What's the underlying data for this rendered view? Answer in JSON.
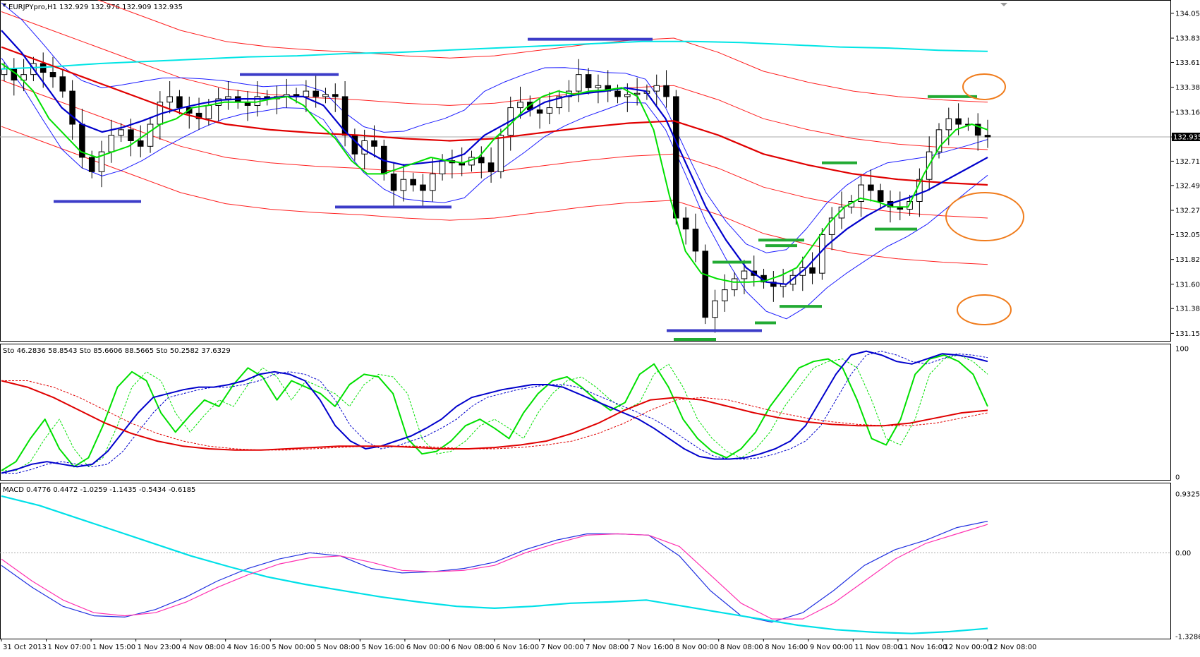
{
  "header": {
    "main_label": "EURJPYpro,H1  132.929 132.976 132.909 132.935",
    "sto_label": "Sto 46.2836 58.8543  Sto 85.6606 88.5665  Sto 50.2582 37.6329",
    "macd_label": "MACD 0.4776 0.4472 -1.0259 -1.1435 -0.5434 -0.6185",
    "current_price": "132.935"
  },
  "colors": {
    "background": "#ffffff",
    "bull_candle": "#ffffff",
    "bear_candle": "#000000",
    "ma_fast": "#00e000",
    "ma_mid": "#0000cc",
    "ma_slow": "#e00000",
    "ma_long": "#00e5e5",
    "bands": "#1c1cff",
    "bands_outer": "#ff2020",
    "support_marker": "#3c3cc8",
    "green_marker": "#22aa33",
    "highlight_circle": "#f07c1c",
    "macd_main": "#2030e0",
    "macd_signal": "#ff30b0",
    "macd_cyan": "#00e0e8"
  },
  "chart_data": [
    {
      "type": "candlestick",
      "symbol": "EURJPYpro",
      "timeframe": "H1",
      "ylim": [
        131.1,
        134.15
      ],
      "y_ticks": [
        "134.055",
        "133.830",
        "133.610",
        "133.385",
        "133.160",
        "132.935",
        "132.715",
        "132.495",
        "132.270",
        "132.050",
        "131.825",
        "131.600",
        "131.380",
        "131.155"
      ],
      "y_tick_values": [
        134.055,
        133.83,
        133.61,
        133.385,
        133.16,
        132.935,
        132.715,
        132.495,
        132.27,
        132.05,
        131.825,
        131.6,
        131.38,
        131.155
      ],
      "x_ticks": [
        "31 Oct 2013",
        "1 Nov 07:00",
        "1 Nov 15:00",
        "1 Nov 23:00",
        "4 Nov 08:00",
        "4 Nov 16:00",
        "5 Nov 00:00",
        "5 Nov 08:00",
        "5 Nov 16:00",
        "6 Nov 00:00",
        "6 Nov 08:00",
        "6 Nov 16:00",
        "7 Nov 00:00",
        "7 Nov 08:00",
        "7 Nov 16:00",
        "8 Nov 00:00",
        "8 Nov 08:00",
        "8 Nov 16:00",
        "9 Nov 00:00",
        "11 Nov 08:00",
        "11 Nov 16:00",
        "12 Nov 00:00",
        "12 Nov 08:00"
      ],
      "close": [
        133.55,
        133.45,
        133.5,
        133.6,
        133.52,
        133.48,
        133.35,
        133.05,
        132.75,
        132.62,
        132.8,
        132.95,
        133.0,
        132.9,
        132.85,
        133.05,
        133.25,
        133.3,
        133.2,
        133.15,
        133.1,
        133.22,
        133.28,
        133.3,
        133.25,
        133.22,
        133.3,
        133.28,
        133.3,
        133.32,
        133.3,
        133.35,
        133.3,
        133.32,
        133.3,
        132.95,
        132.78,
        132.9,
        132.85,
        132.6,
        132.45,
        132.55,
        132.5,
        132.45,
        132.6,
        132.72,
        132.7,
        132.68,
        132.75,
        132.7,
        132.62,
        132.95,
        133.2,
        133.25,
        133.18,
        133.15,
        133.2,
        133.3,
        133.35,
        133.5,
        133.38,
        133.4,
        133.35,
        133.3,
        133.32,
        133.33,
        133.35,
        133.4,
        133.3,
        132.2,
        132.1,
        131.9,
        131.3,
        131.45,
        131.55,
        131.65,
        131.72,
        131.68,
        131.62,
        131.58,
        131.6,
        131.68,
        131.75,
        131.7,
        132.05,
        132.2,
        132.3,
        132.35,
        132.5,
        132.45,
        132.35,
        132.3,
        132.28,
        132.35,
        132.55,
        132.8,
        133.0,
        133.1,
        133.05,
        133.05,
        132.95,
        132.935
      ],
      "ma_fast": [
        133.6,
        133.5,
        133.35,
        133.1,
        132.95,
        132.8,
        132.75,
        132.8,
        132.85,
        132.95,
        133.05,
        133.1,
        133.2,
        133.22,
        133.25,
        133.25,
        133.25,
        133.28,
        133.3,
        133.22,
        133.05,
        132.92,
        132.72,
        132.6,
        132.6,
        132.65,
        132.7,
        132.75,
        132.72,
        132.7,
        132.75,
        132.92,
        133.05,
        133.2,
        133.3,
        133.35,
        133.32,
        133.35,
        133.36,
        133.38,
        133.3,
        133.0,
        132.4,
        131.9,
        131.7,
        131.65,
        131.62,
        131.62,
        131.63,
        131.68,
        131.75,
        131.95,
        132.15,
        132.3,
        132.38,
        132.35,
        132.3,
        132.3,
        132.6,
        132.85,
        133.0,
        133.05,
        133.0
      ],
      "ma_mid": [
        133.9,
        133.7,
        133.45,
        133.2,
        133.05,
        132.98,
        133.02,
        133.08,
        133.15,
        133.2,
        133.24,
        133.27,
        133.28,
        133.28,
        133.3,
        133.3,
        133.22,
        133.0,
        132.82,
        132.72,
        132.68,
        132.7,
        132.72,
        132.78,
        132.95,
        133.05,
        133.15,
        133.25,
        133.3,
        133.33,
        133.35,
        133.38,
        133.35,
        133.1,
        132.7,
        132.3,
        132.0,
        131.75,
        131.62,
        131.6,
        131.75,
        131.95,
        132.1,
        132.22,
        132.32,
        132.38,
        132.45,
        132.55,
        132.65,
        132.75
      ],
      "ma_slow": [
        133.75,
        133.6,
        133.45,
        133.3,
        133.15,
        133.05,
        133.0,
        132.97,
        132.95,
        132.92,
        132.9,
        132.92,
        132.97,
        133.02,
        133.06,
        133.08,
        132.95,
        132.78,
        132.68,
        132.6,
        132.55,
        132.52,
        132.5
      ],
      "ma_long": [
        133.55,
        133.57,
        133.6,
        133.62,
        133.64,
        133.66,
        133.67,
        133.69,
        133.7,
        133.72,
        133.74,
        133.76,
        133.78,
        133.8,
        133.8,
        133.79,
        133.77,
        133.75,
        133.74,
        133.72,
        133.71
      ]
    },
    {
      "type": "line",
      "indicator": "Stochastic",
      "ylim": [
        0,
        100
      ],
      "y_ticks": [
        "100",
        "0"
      ],
      "series": [
        {
          "name": "Sto 46.2836 58.8543",
          "values": [
            5,
            12,
            30,
            45,
            22,
            8,
            15,
            40,
            70,
            82,
            75,
            50,
            35,
            48,
            60,
            55,
            72,
            85,
            78,
            60,
            75,
            70,
            65,
            55,
            72,
            80,
            78,
            65,
            30,
            18,
            20,
            28,
            40,
            45,
            38,
            30,
            50,
            65,
            75,
            78,
            70,
            60,
            52,
            58,
            80,
            88,
            70,
            45,
            30,
            20,
            15,
            22,
            35,
            55,
            70,
            85,
            90,
            92,
            85,
            60,
            30,
            25,
            45,
            80,
            92,
            95,
            90,
            80,
            55
          ]
        },
        {
          "name": "Sto 85.6606 88.5665",
          "values": [
            3,
            6,
            10,
            12,
            10,
            8,
            10,
            20,
            35,
            50,
            62,
            65,
            68,
            70,
            70,
            72,
            75,
            80,
            82,
            80,
            75,
            60,
            40,
            28,
            22,
            24,
            28,
            32,
            38,
            45,
            55,
            62,
            65,
            68,
            70,
            72,
            72,
            70,
            65,
            60,
            55,
            50,
            45,
            38,
            30,
            22,
            16,
            14,
            14,
            15,
            18,
            22,
            28,
            40,
            60,
            80,
            95,
            98,
            95,
            90,
            88,
            92,
            96,
            95,
            93,
            90
          ]
        },
        {
          "name": "Sto 50.2582 37.6329",
          "values": [
            75,
            70,
            62,
            52,
            42,
            34,
            28,
            24,
            22,
            21,
            21,
            22,
            23,
            24,
            24,
            24,
            23,
            22,
            22,
            23,
            25,
            28,
            34,
            42,
            52,
            60,
            62,
            60,
            55,
            50,
            46,
            43,
            41,
            40,
            40,
            42,
            46,
            50,
            52
          ]
        }
      ]
    },
    {
      "type": "line",
      "indicator": "MACD",
      "ylim": [
        -1.3286,
        0.9325
      ],
      "y_ticks": [
        "0.9325",
        "0.00",
        "-1.3286"
      ],
      "series": [
        {
          "name": "MACD 0.4776 0.4472",
          "values": [
            -0.2,
            -0.55,
            -0.85,
            -1.0,
            -1.02,
            -0.9,
            -0.7,
            -0.45,
            -0.25,
            -0.1,
            0.0,
            -0.05,
            -0.25,
            -0.32,
            -0.3,
            -0.25,
            -0.15,
            0.05,
            0.2,
            0.3,
            0.3,
            0.28,
            -0.05,
            -0.6,
            -1.0,
            -1.1,
            -0.95,
            -0.6,
            -0.2,
            0.05,
            0.2,
            0.4,
            0.5
          ]
        },
        {
          "name": "-1.0259 -1.1435",
          "values": [
            0.9,
            0.75,
            0.55,
            0.35,
            0.15,
            -0.05,
            -0.22,
            -0.38,
            -0.5,
            -0.6,
            -0.7,
            -0.78,
            -0.85,
            -0.88,
            -0.85,
            -0.8,
            -0.78,
            -0.75,
            -0.85,
            -0.95,
            -1.05,
            -1.15,
            -1.22,
            -1.26,
            -1.28,
            -1.25,
            -1.2
          ]
        },
        {
          "name": "-0.5434 -0.6185",
          "values": [
            -0.1,
            -0.45,
            -0.75,
            -0.95,
            -1.0,
            -0.95,
            -0.78,
            -0.55,
            -0.35,
            -0.18,
            -0.08,
            -0.05,
            -0.15,
            -0.28,
            -0.3,
            -0.28,
            -0.2,
            0.0,
            0.15,
            0.28,
            0.3,
            0.28,
            0.1,
            -0.35,
            -0.8,
            -1.05,
            -1.05,
            -0.8,
            -0.45,
            -0.1,
            0.15,
            0.3,
            0.45
          ]
        }
      ]
    }
  ]
}
